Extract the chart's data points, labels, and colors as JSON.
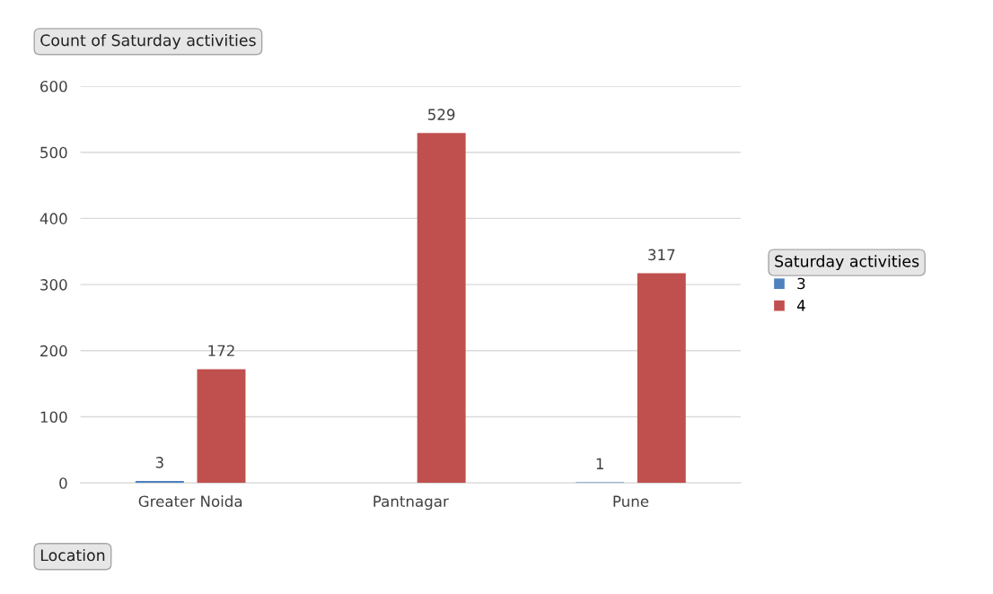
{
  "chart_data": {
    "type": "bar",
    "title": "Count of Saturday activities",
    "categories": [
      "Greater Noida",
      "Pantnagar",
      "Pune"
    ],
    "series": [
      {
        "name": "3",
        "color": "#4f81bd",
        "values": [
          3,
          null,
          1
        ]
      },
      {
        "name": "4",
        "color": "#c0504d",
        "values": [
          172,
          529,
          317
        ]
      }
    ],
    "legend_title": "Saturday activities",
    "legend": "right",
    "annotations": [
      "Location"
    ],
    "ylim": [
      0,
      600
    ],
    "yticks": [
      0,
      100,
      200,
      300,
      400,
      500,
      600
    ],
    "grid": "y",
    "data_labels": true
  }
}
